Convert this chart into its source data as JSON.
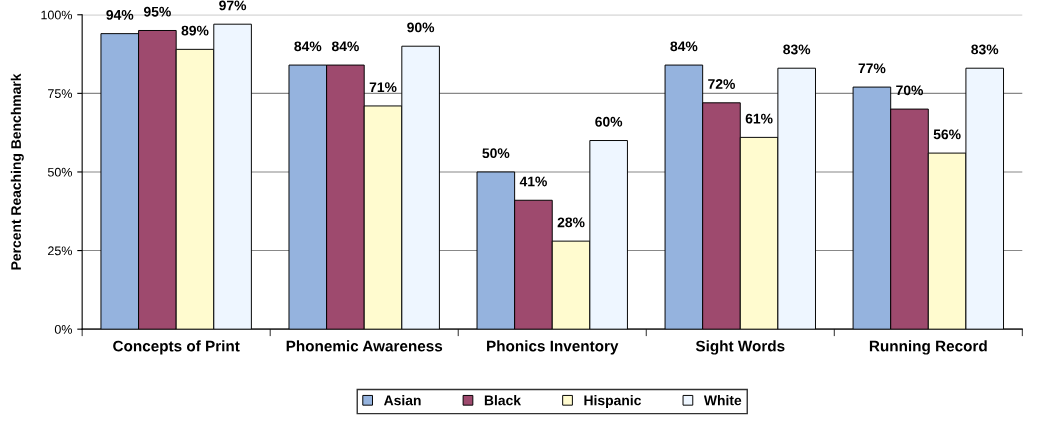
{
  "chart_data": {
    "type": "bar",
    "ylabel": "Percent Reaching Benchmark",
    "categories": [
      "Concepts of Print",
      "Phonemic Awareness",
      "Phonics Inventory",
      "Sight Words",
      "Running Record"
    ],
    "series": [
      {
        "name": "Asian",
        "color": "#95b3de",
        "values": [
          94,
          84,
          50,
          84,
          77
        ],
        "value_labels": [
          "94%",
          "84%",
          "50%",
          "84%",
          "77%"
        ]
      },
      {
        "name": "Black",
        "color": "#9e4a6e",
        "values": [
          95,
          84,
          41,
          72,
          70
        ],
        "value_labels": [
          "95%",
          "84%",
          "41%",
          "72%",
          "70%"
        ]
      },
      {
        "name": "Hispanic",
        "color": "#fffbcf",
        "values": [
          89,
          71,
          28,
          61,
          56
        ],
        "value_labels": [
          "89%",
          "71%",
          "28%",
          "61%",
          "56%"
        ]
      },
      {
        "name": "White",
        "color": "#eef6ff",
        "values": [
          97,
          90,
          60,
          83,
          83
        ],
        "value_labels": [
          "97%",
          "90%",
          "60%",
          "83%",
          "83%"
        ]
      }
    ],
    "ylim": [
      0,
      100
    ],
    "yticks": [
      {
        "value": 0,
        "label": "0%"
      },
      {
        "value": 25,
        "label": "25%"
      },
      {
        "value": 50,
        "label": "50%"
      },
      {
        "value": 75,
        "label": "75%"
      },
      {
        "value": 100,
        "label": "100%"
      }
    ],
    "grid": "y",
    "legend": "bottom"
  }
}
